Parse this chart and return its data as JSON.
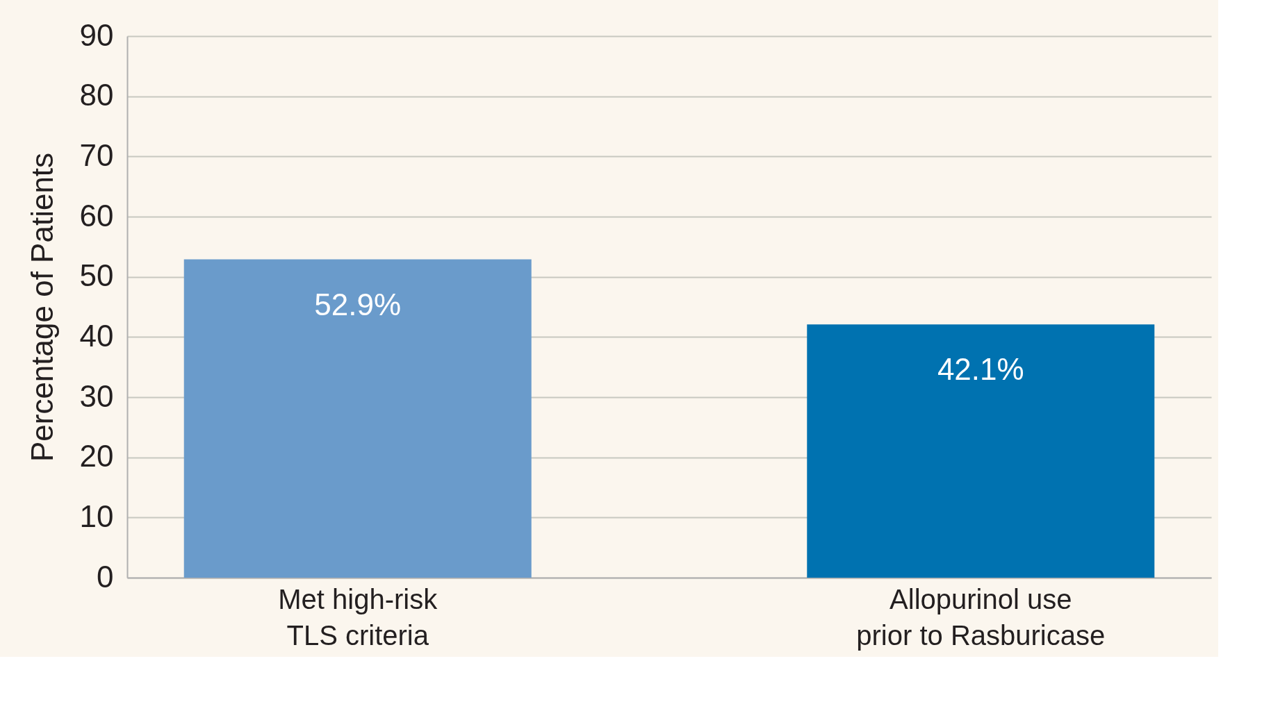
{
  "chart_data": {
    "type": "bar",
    "ylabel": "Percentage of Patients",
    "categories": [
      "Met high-risk\nTLS criteria",
      "Allopurinol use\nprior to Rasburicase"
    ],
    "values": [
      52.9,
      42.1
    ],
    "colors": [
      "#6a9bcb",
      "#0072b0"
    ],
    "value_labels": [
      "52.9%",
      "42.1%"
    ],
    "ylim": [
      0,
      90
    ],
    "yticks": [
      0,
      10,
      20,
      30,
      40,
      50,
      60,
      70,
      80,
      90
    ],
    "grid": "y"
  }
}
